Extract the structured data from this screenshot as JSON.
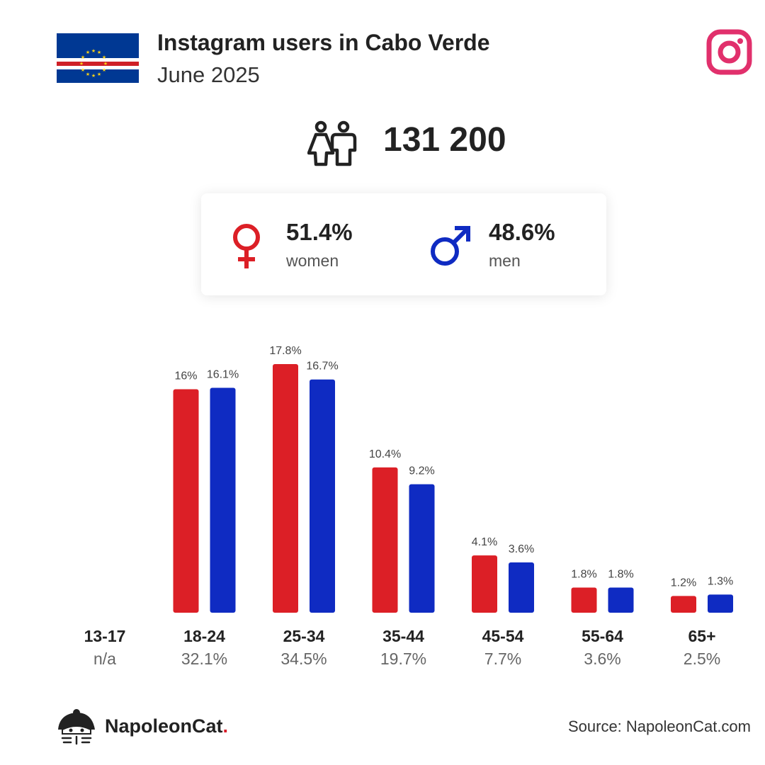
{
  "header": {
    "title": "Instagram users in Cabo Verde",
    "subtitle": "June 2025"
  },
  "icons": {
    "flag": "cabo-verde-flag-icon",
    "platform": "instagram-icon",
    "people": "people-icon",
    "female": "female-symbol-icon",
    "male": "male-symbol-icon",
    "logo": "napoleoncat-logo-icon"
  },
  "total_users": "131 200",
  "gender": {
    "women_value": "51.4%",
    "women_label": "women",
    "men_value": "48.6%",
    "men_label": "men"
  },
  "colors": {
    "women": "#dc1f26",
    "men": "#0f2bc2",
    "instagram": "#e1306c",
    "flag_blue": "#003893",
    "flag_red": "#cf2027",
    "flag_yellow": "#f7d116"
  },
  "chart_data": {
    "type": "bar",
    "categories": [
      "13-17",
      "18-24",
      "25-34",
      "35-44",
      "45-54",
      "55-64",
      "65+"
    ],
    "category_totals": [
      "n/a",
      "32.1%",
      "34.5%",
      "19.7%",
      "7.7%",
      "3.6%",
      "2.5%"
    ],
    "series": [
      {
        "values": [
          null,
          16.0,
          17.8,
          10.4,
          4.1,
          1.8,
          1.2
        ],
        "labels": [
          "",
          "16%",
          "17.8%",
          "10.4%",
          "4.1%",
          "1.8%",
          "1.2%"
        ]
      },
      {
        "values": [
          null,
          16.1,
          16.7,
          9.2,
          3.6,
          1.8,
          1.3
        ],
        "labels": [
          "",
          "16.1%",
          "16.7%",
          "9.2%",
          "3.6%",
          "1.8%",
          "1.3%"
        ]
      }
    ],
    "ylim": [
      0,
      17.8
    ],
    "grid": false,
    "legend": "none"
  },
  "footer": {
    "brand": "NapoleonCat",
    "brand_dot": ".",
    "source": "Source: NapoleonCat.com"
  }
}
